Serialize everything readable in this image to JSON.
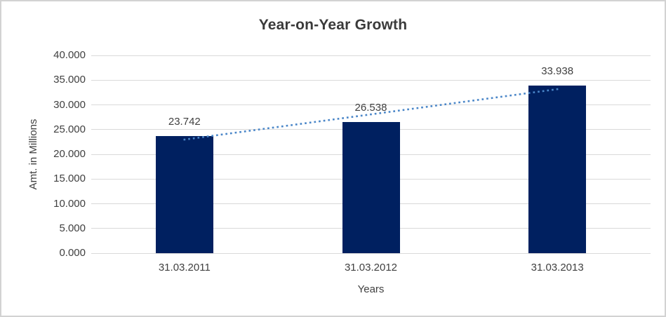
{
  "chart_data": {
    "type": "bar",
    "title": "Year-on-Year Growth",
    "categories": [
      "31.03.2011",
      "31.03.2012",
      "31.03.2013"
    ],
    "values": [
      23.742,
      26.538,
      33.938
    ],
    "data_labels": [
      "23.742",
      "26.538",
      "33.938"
    ],
    "xlabel": "Years",
    "ylabel": "Amt. in Millions",
    "ylim": [
      0,
      40
    ],
    "ytick_step": 5,
    "ytick_labels": [
      "0.000",
      "5.000",
      "10.000",
      "15.000",
      "20.000",
      "25.000",
      "30.000",
      "35.000",
      "40.000"
    ],
    "grid": true,
    "legend": "none",
    "bar_color": "#002060",
    "gridline_color": "#D9D9D9",
    "text_color": "#404040",
    "trendline": {
      "fit": "linear",
      "style": "dotted",
      "color": "#4A86C8"
    }
  }
}
